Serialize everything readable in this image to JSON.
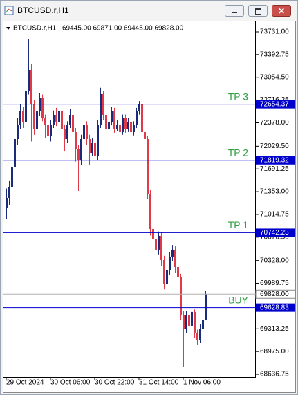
{
  "window_title": "BTCUSD.r,H1",
  "chart_data": {
    "type": "candlestick",
    "symbol": "BTCUSD.r,H1",
    "ohlc_text": "69445.00 69871.00 69445.00 69828.00",
    "categories": [
      "29 Oct 2024",
      null,
      null,
      null,
      null,
      null,
      null,
      null,
      null,
      null,
      null,
      null,
      null,
      null,
      null,
      null,
      "30 Oct 06:00",
      null,
      null,
      null,
      null,
      null,
      null,
      null,
      null,
      null,
      null,
      null,
      null,
      null,
      null,
      null,
      "30 Oct 22:00",
      null,
      null,
      null,
      null,
      null,
      null,
      null,
      null,
      null,
      null,
      null,
      null,
      null,
      null,
      null,
      "31 Oct 14:00",
      null,
      null,
      null,
      null,
      null,
      null,
      null,
      null,
      null,
      null,
      null,
      null,
      null,
      null,
      null,
      "1 Nov 06:00",
      null,
      null,
      null,
      null,
      null,
      null,
      null,
      null
    ],
    "open": [
      71107,
      71261,
      71416,
      71724,
      72136,
      72342,
      72548,
      72393,
      72856,
      73165,
      72651,
      72290,
      72548,
      72753,
      72445,
      72342,
      72187,
      72342,
      72496,
      72393,
      72548,
      72290,
      72136,
      72342,
      72496,
      72239,
      71982,
      71827,
      72136,
      72342,
      72136,
      71930,
      72085,
      71879,
      72342,
      72805,
      72496,
      72290,
      72393,
      72548,
      72290,
      72342,
      72239,
      72445,
      72290,
      72393,
      72239,
      72342,
      72548,
      72651,
      72239,
      72136,
      71313,
      70798,
      70644,
      70490,
      70696,
      70335,
      69975,
      70181,
      70387,
      70490,
      70232,
      70078,
      69512,
      69306,
      69512,
      69358,
      69564,
      69255,
      69152,
      69306,
      69445
    ],
    "high": [
      71400,
      71520,
      71800,
      72250,
      72450,
      72650,
      72620,
      72950,
      73628,
      73250,
      72720,
      72620,
      72820,
      72800,
      72500,
      72400,
      72420,
      72560,
      72600,
      72620,
      72600,
      72350,
      72400,
      72580,
      72550,
      72300,
      72050,
      72200,
      72420,
      72400,
      72200,
      72150,
      72150,
      72420,
      72900,
      72850,
      72560,
      72450,
      72620,
      72600,
      72420,
      72400,
      72500,
      72500,
      72450,
      72440,
      72400,
      72600,
      72700,
      72700,
      72300,
      72180,
      71380,
      70860,
      70720,
      70760,
      70750,
      70400,
      70250,
      70450,
      70560,
      70540,
      70300,
      70130,
      69580,
      69580,
      69600,
      69620,
      69600,
      69300,
      69380,
      69520,
      69871
    ],
    "low": [
      70950,
      71150,
      71350,
      71650,
      72050,
      72280,
      72300,
      72350,
      72800,
      72100,
      72200,
      72240,
      72480,
      72400,
      72150,
      72050,
      72100,
      72300,
      72330,
      72350,
      72200,
      71950,
      72080,
      72300,
      72180,
      71800,
      71364,
      71750,
      72080,
      72050,
      71750,
      71880,
      71800,
      71820,
      72300,
      72420,
      72220,
      72240,
      72340,
      72230,
      72250,
      72180,
      72200,
      72230,
      72240,
      72180,
      72190,
      72300,
      72500,
      72180,
      72050,
      71250,
      70700,
      70550,
      70400,
      70420,
      70250,
      69900,
      69700,
      70120,
      70320,
      70150,
      69980,
      69440,
      68740,
      69250,
      69280,
      69300,
      69180,
      69080,
      69100,
      69250,
      69445
    ],
    "close": [
      71261,
      71416,
      71724,
      72136,
      72342,
      72548,
      72393,
      72856,
      73165,
      72651,
      72290,
      72548,
      72753,
      72445,
      72342,
      72187,
      72342,
      72496,
      72393,
      72548,
      72290,
      72136,
      72342,
      72496,
      72239,
      71982,
      71827,
      72136,
      72342,
      72136,
      71930,
      72085,
      71879,
      72342,
      72805,
      72496,
      72290,
      72393,
      72548,
      72290,
      72342,
      72239,
      72445,
      72290,
      72393,
      72239,
      72342,
      72548,
      72651,
      72239,
      72136,
      71313,
      70798,
      70644,
      70490,
      70696,
      70335,
      69975,
      70181,
      70387,
      70490,
      70232,
      70078,
      69512,
      69306,
      69512,
      69358,
      69564,
      69255,
      69152,
      69306,
      69445,
      69828
    ],
    "up_color": "#1c2a7a",
    "down_color": "#e03a48",
    "level_color": "#0000cc",
    "level_text_color": "#2ea043",
    "ylim": [
      68596,
      73875
    ],
    "yticks": [
      {
        "value": 73731,
        "label": "73731.00"
      },
      {
        "value": 73392.75,
        "label": "73392.75"
      },
      {
        "value": 73054.5,
        "label": "73054.50"
      },
      {
        "value": 72716.25,
        "label": "72716.25"
      },
      {
        "value": 72378,
        "label": "72378.00"
      },
      {
        "value": 72029.5,
        "label": "72029.50"
      },
      {
        "value": 71691.25,
        "label": "71691.25"
      },
      {
        "value": 71353,
        "label": "71353.00"
      },
      {
        "value": 71014.75,
        "label": "71014.75"
      },
      {
        "value": 70676.5,
        "label": "70676.50"
      },
      {
        "value": 70328,
        "label": "70328.00"
      },
      {
        "value": 69989.75,
        "label": "69989.75"
      },
      {
        "value": 69313.25,
        "label": "69313.25"
      },
      {
        "value": 68975,
        "label": "68975.00"
      },
      {
        "value": 68636.75,
        "label": "68636.75"
      }
    ],
    "levels": [
      {
        "name": "TP 3",
        "value": 72654.37,
        "label": "72654.37"
      },
      {
        "name": "TP 2",
        "value": 71819.32,
        "label": "71819.32"
      },
      {
        "name": "TP 1",
        "value": 70742.23,
        "label": "70742.23"
      },
      {
        "name": "BUY",
        "value": 69628.83,
        "label": "69628.83"
      }
    ],
    "current_price": {
      "value": 69828,
      "label": "69828.00"
    }
  }
}
